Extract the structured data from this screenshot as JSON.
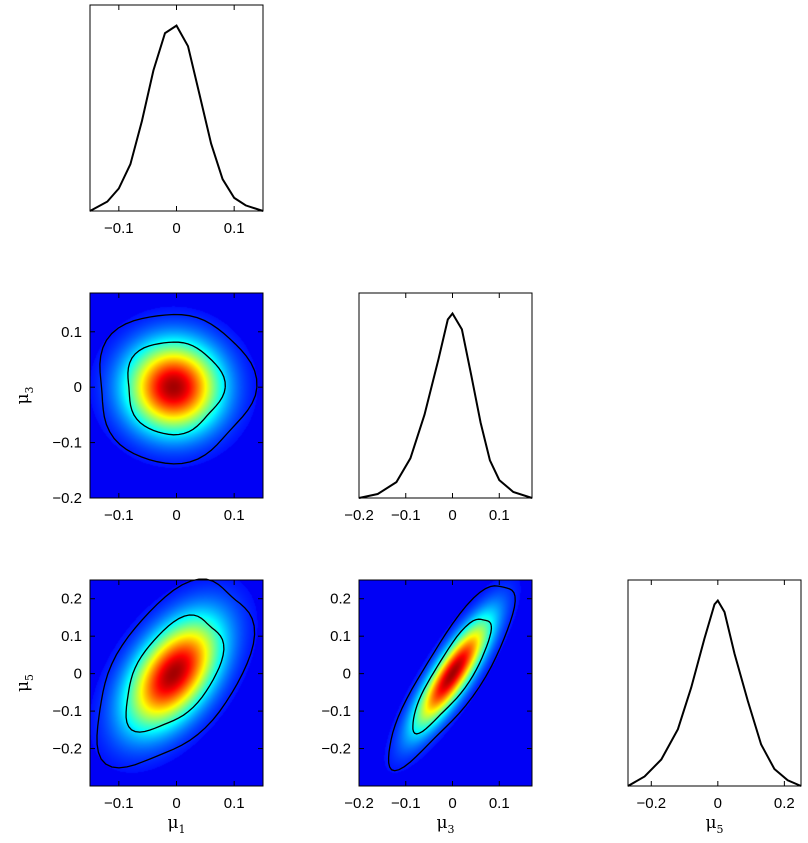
{
  "chart_data": [
    {
      "type": "line",
      "panel": "mu1-marginal",
      "xlabel": "",
      "ylabel": "",
      "xlim": [
        -0.15,
        0.15
      ],
      "xticks": [
        "-0.1",
        "0",
        "0.1"
      ],
      "x": [
        -0.15,
        -0.12,
        -0.1,
        -0.08,
        -0.06,
        -0.04,
        -0.02,
        0.0,
        0.02,
        0.04,
        0.06,
        0.08,
        0.1,
        0.12,
        0.15
      ],
      "y": [
        0.0,
        0.05,
        0.12,
        0.25,
        0.48,
        0.75,
        0.95,
        0.99,
        0.88,
        0.62,
        0.36,
        0.17,
        0.07,
        0.03,
        0.0
      ]
    },
    {
      "type": "heatmap",
      "panel": "mu1-mu3-joint",
      "xlabel": "",
      "ylabel": "μ3",
      "xlim": [
        -0.15,
        0.15
      ],
      "ylim": [
        -0.2,
        0.17
      ],
      "xticks": [
        "-0.1",
        "0",
        "0.1"
      ],
      "yticks": [
        "-0.2",
        "-0.1",
        "0",
        "0.1"
      ],
      "center": [
        -0.005,
        0.0
      ],
      "sigma": [
        0.055,
        0.055
      ],
      "correlation": 0.0
    },
    {
      "type": "line",
      "panel": "mu3-marginal",
      "xlabel": "",
      "ylabel": "",
      "xlim": [
        -0.2,
        0.17
      ],
      "xticks": [
        "-0.2",
        "-0.1",
        "0",
        "0.1"
      ],
      "x": [
        -0.2,
        -0.16,
        -0.12,
        -0.09,
        -0.06,
        -0.03,
        -0.01,
        0.0,
        0.02,
        0.04,
        0.06,
        0.08,
        0.1,
        0.13,
        0.17
      ],
      "y": [
        0.0,
        0.02,
        0.08,
        0.2,
        0.42,
        0.7,
        0.9,
        0.93,
        0.85,
        0.62,
        0.38,
        0.19,
        0.09,
        0.03,
        0.0
      ]
    },
    {
      "type": "heatmap",
      "panel": "mu1-mu5-joint",
      "xlabel": "μ1",
      "ylabel": "μ5",
      "xlim": [
        -0.15,
        0.15
      ],
      "ylim": [
        -0.3,
        0.25
      ],
      "xticks": [
        "-0.1",
        "0",
        "0.1"
      ],
      "yticks": [
        "-0.2",
        "-0.1",
        "0",
        "0.1",
        "0.2"
      ],
      "center": [
        -0.005,
        0.0
      ],
      "sigma": [
        0.055,
        0.1
      ],
      "correlation": 0.5
    },
    {
      "type": "heatmap",
      "panel": "mu3-mu5-joint",
      "xlabel": "μ3",
      "ylabel": "",
      "xlim": [
        -0.2,
        0.17
      ],
      "ylim": [
        -0.3,
        0.25
      ],
      "xticks": [
        "-0.2",
        "-0.1",
        "0",
        "0.1"
      ],
      "yticks": [
        "-0.2",
        "-0.1",
        "0",
        "0.1",
        "0.2"
      ],
      "center": [
        0.0,
        0.0
      ],
      "sigma": [
        0.055,
        0.1
      ],
      "correlation": 0.85
    },
    {
      "type": "line",
      "panel": "mu5-marginal",
      "xlabel": "μ5",
      "ylabel": "",
      "xlim": [
        -0.27,
        0.25
      ],
      "xticks": [
        "-0.2",
        "0",
        "0.2"
      ],
      "x": [
        -0.27,
        -0.22,
        -0.17,
        -0.12,
        -0.08,
        -0.04,
        -0.01,
        0.0,
        0.02,
        0.05,
        0.09,
        0.13,
        0.17,
        0.21,
        0.25
      ],
      "y": [
        0.0,
        0.05,
        0.14,
        0.3,
        0.52,
        0.78,
        0.96,
        0.98,
        0.92,
        0.7,
        0.45,
        0.22,
        0.09,
        0.03,
        0.0
      ]
    }
  ]
}
